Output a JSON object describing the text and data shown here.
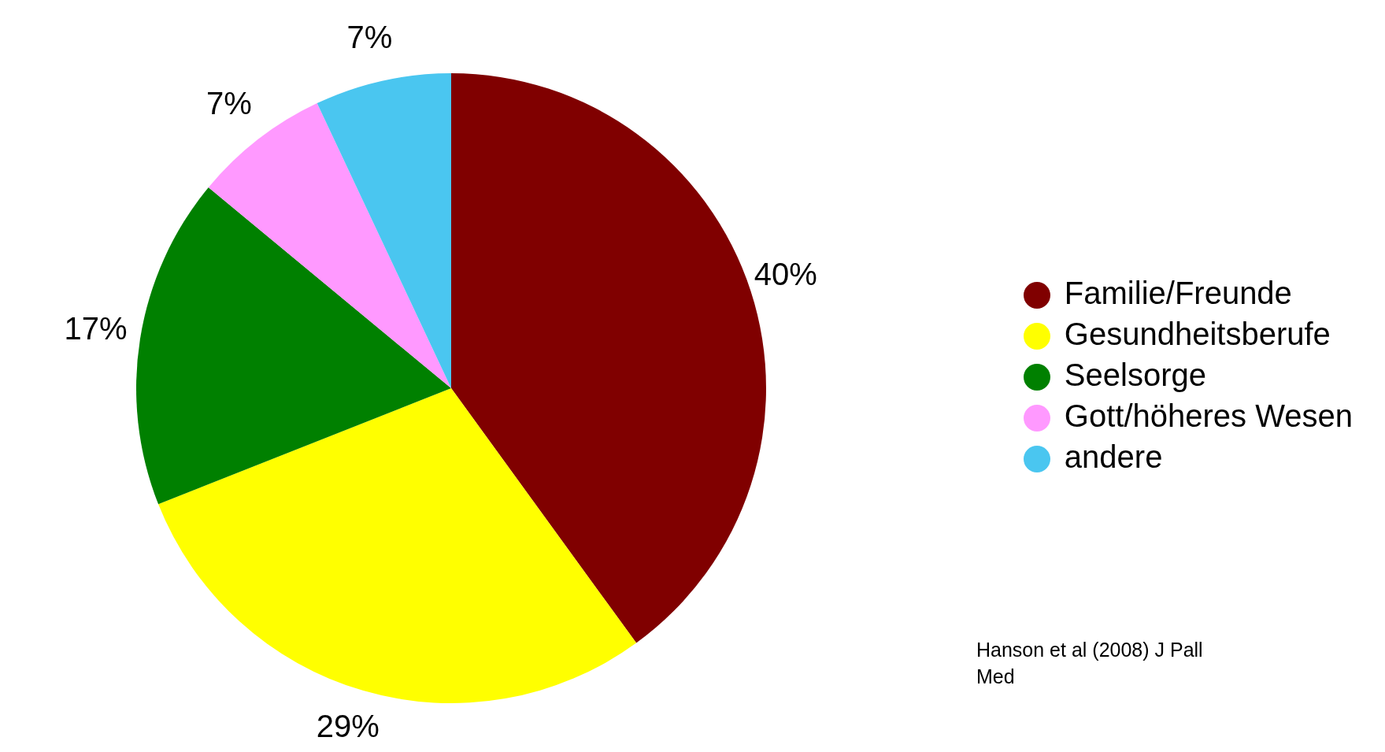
{
  "chart_data": {
    "type": "pie",
    "categories": [
      "Familie/Freunde",
      "Gesundheitsberufe",
      "Seelsorge",
      "Gott/höheres Wesen",
      "andere"
    ],
    "values": [
      40,
      29,
      17,
      7,
      7
    ],
    "colors": [
      "#800000",
      "#ffff00",
      "#008000",
      "#ff99ff",
      "#4ac6f0"
    ],
    "value_labels": [
      "40%",
      "29%",
      "17%",
      "7%",
      "7%"
    ],
    "legend": "right",
    "annotations": [
      "Hanson et al (2008) J Pall Med"
    ]
  }
}
